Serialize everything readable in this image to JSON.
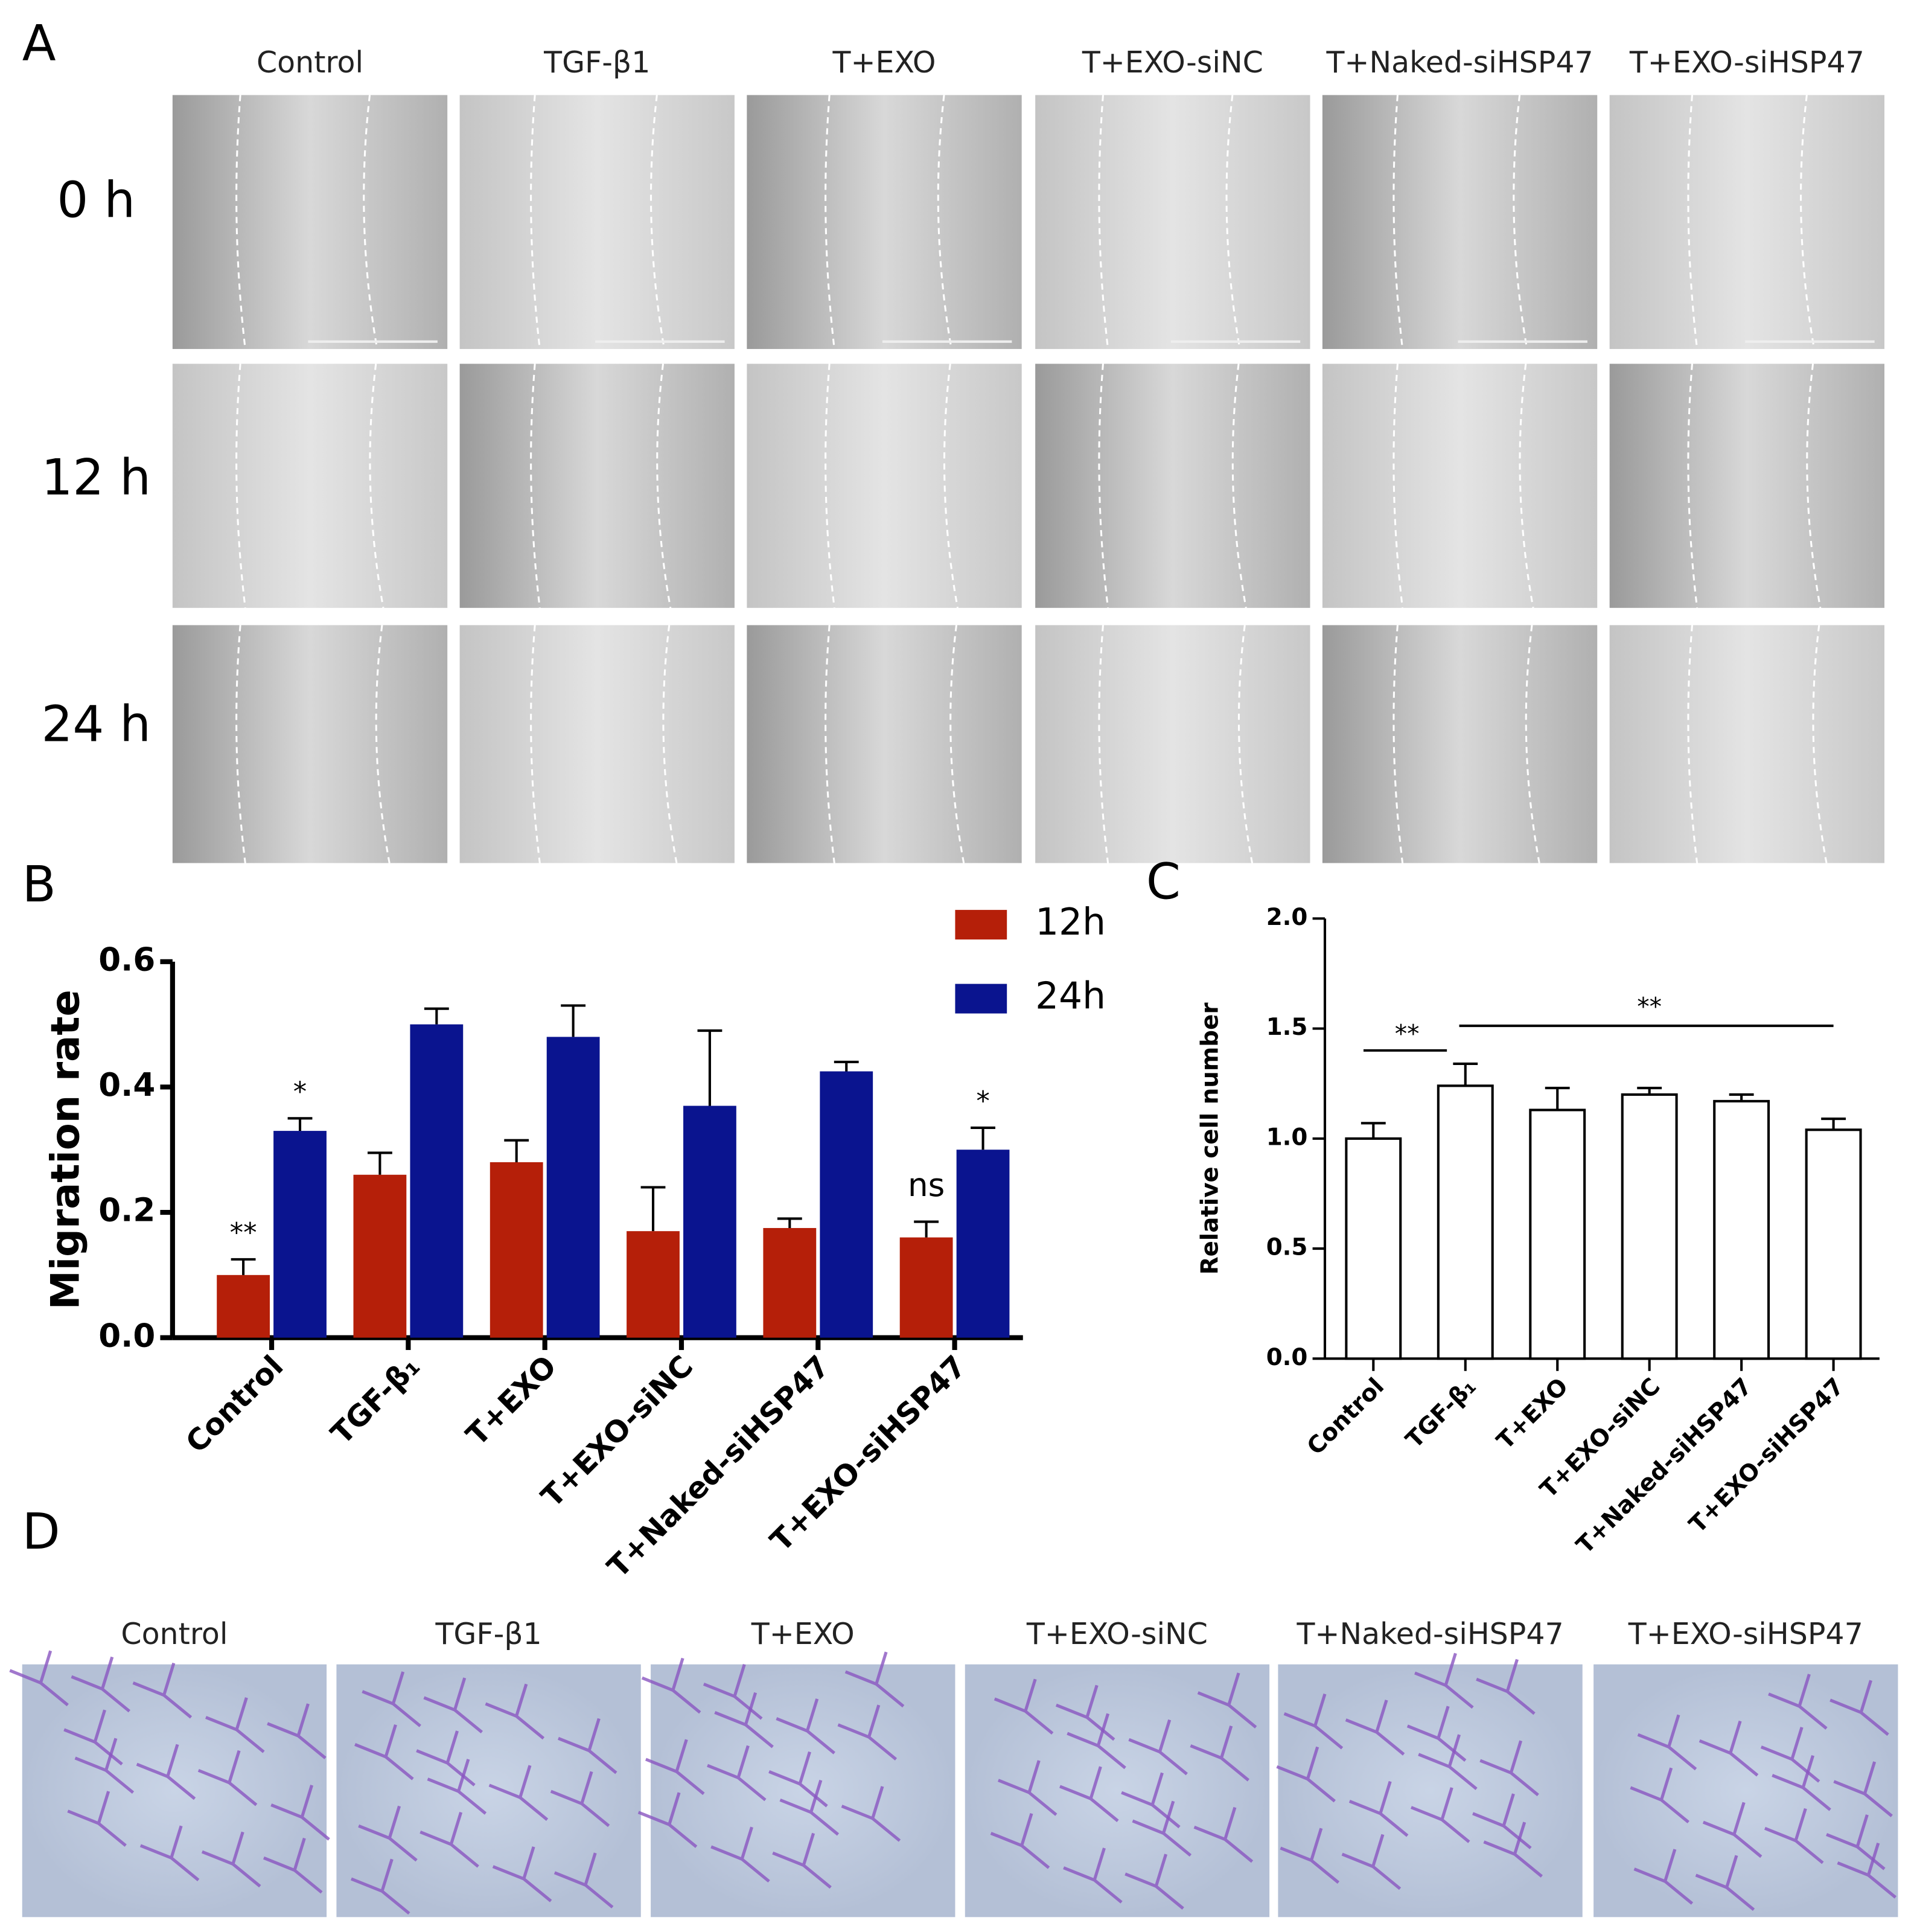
{
  "panel_a": {
    "letter": "A",
    "columns": [
      "Control",
      "TGF-β1",
      "T+EXO",
      "T+EXO-siNC",
      "T+Naked-siHSP47",
      "T+EXO-siHSP47"
    ],
    "rows": [
      "0 h",
      "12 h",
      "24 h"
    ]
  },
  "panel_d": {
    "letter": "D",
    "columns": [
      "Control",
      "TGF-β1",
      "T+EXO",
      "T+EXO-siNC",
      "T+Naked-siHSP47",
      "T+EXO-siHSP47"
    ]
  },
  "chart_data": [
    {
      "type": "bar",
      "letter": "B",
      "y_label": "Migration rate",
      "categories": [
        "Control",
        "TGF-β₁",
        "T+EXO",
        "T+EXO-siNC",
        "T+Naked-siHSP47",
        "T+EXO-siHSP47"
      ],
      "series": [
        {
          "name": "12h",
          "color": "#b51f09",
          "values": [
            0.1,
            0.26,
            0.28,
            0.17,
            0.175,
            0.16
          ],
          "errors": [
            0.025,
            0.035,
            0.035,
            0.07,
            0.015,
            0.025
          ]
        },
        {
          "name": "24h",
          "color": "#0a148f",
          "values": [
            0.33,
            0.5,
            0.48,
            0.37,
            0.425,
            0.3
          ],
          "errors": [
            0.02,
            0.025,
            0.05,
            0.12,
            0.015,
            0.035
          ]
        }
      ],
      "ylim": [
        0,
        0.6
      ],
      "yticks": [
        {
          "value": 0,
          "label": "0.0"
        },
        {
          "value": 0.2,
          "label": "0.2"
        },
        {
          "value": 0.4,
          "label": "0.4"
        },
        {
          "value": 0.6,
          "label": "0.6"
        }
      ],
      "annotations": [
        "**",
        "*",
        "ns",
        "*"
      ]
    },
    {
      "type": "bar",
      "letter": "C",
      "y_label": "Relative cell number",
      "categories": [
        "Control",
        "TGF-β₁",
        "T+EXO",
        "T+EXO-siNC",
        "T+Naked-siHSP47",
        "T+EXO-siHSP47"
      ],
      "values": [
        1.0,
        1.24,
        1.13,
        1.2,
        1.17,
        1.04
      ],
      "errors": [
        0.07,
        0.1,
        0.1,
        0.03,
        0.03,
        0.05
      ],
      "color": "#ffffff",
      "edgecolor": "#000000",
      "ylim": [
        0,
        2
      ],
      "yticks": [
        {
          "value": 0,
          "label": "0.0"
        },
        {
          "value": 0.5,
          "label": "0.5"
        },
        {
          "value": 1,
          "label": "1.0"
        },
        {
          "value": 1.5,
          "label": "1.5"
        },
        {
          "value": 2,
          "label": "2.0"
        }
      ],
      "annotations": [
        "**",
        "**"
      ]
    }
  ]
}
